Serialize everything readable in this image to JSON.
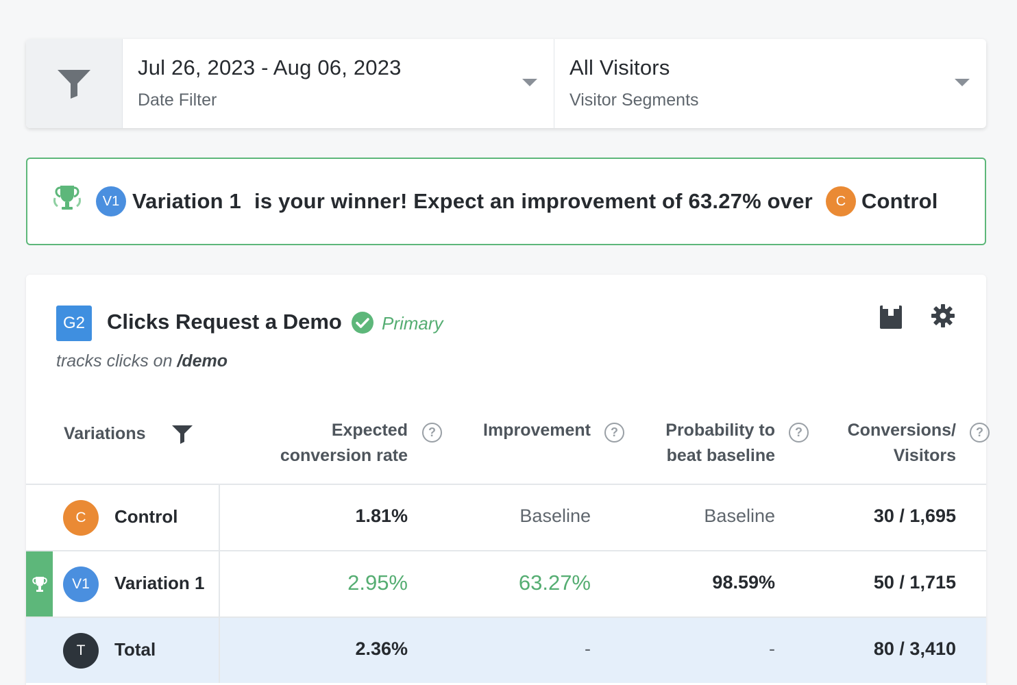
{
  "filters": {
    "date": {
      "value": "Jul 26, 2023 - Aug 06, 2023",
      "label": "Date Filter"
    },
    "segment": {
      "value": "All Visitors",
      "label": "Visitor Segments"
    }
  },
  "banner": {
    "winner_badge": "V1",
    "winner_name": "Variation 1",
    "message": "is your winner! Expect an improvement of 63.27% over",
    "baseline_badge": "C",
    "baseline_name": "Control"
  },
  "goal": {
    "badge": "G2",
    "title": "Clicks Request a Demo",
    "status": "Primary",
    "description_prefix": "tracks clicks on",
    "description_target": "/demo"
  },
  "table": {
    "headers": {
      "variations": "Variations",
      "expected_line1": "Expected",
      "expected_line2": "conversion rate",
      "improvement": "Improvement",
      "probability_line1": "Probability to",
      "probability_line2": "beat baseline",
      "conversions_line1": "Conversions/",
      "conversions_line2": "Visitors",
      "help": "?"
    },
    "rows": [
      {
        "badge": "C",
        "name": "Control",
        "rate": "1.81%",
        "improvement": "Baseline",
        "probability": "Baseline",
        "conversions": "30 / 1,695"
      },
      {
        "badge": "V1",
        "name": "Variation 1",
        "rate": "2.95%",
        "improvement": "63.27%",
        "probability": "98.59%",
        "conversions": "50 / 1,715"
      },
      {
        "badge": "T",
        "name": "Total",
        "rate": "2.36%",
        "improvement": "-",
        "probability": "-",
        "conversions": "80 / 3,410"
      }
    ]
  },
  "colors": {
    "success": "#5db77a",
    "variation_blue": "#4a8fdf",
    "control_orange": "#ea8a34",
    "total_dark": "#2d343b",
    "goal_blue": "#3f8fe0",
    "total_row_bg": "#e5effa"
  },
  "icons": [
    "filter-icon",
    "chevron-down-icon",
    "trophy-icon",
    "check-circle-icon",
    "report-icon",
    "gear-icon",
    "help-icon"
  ]
}
